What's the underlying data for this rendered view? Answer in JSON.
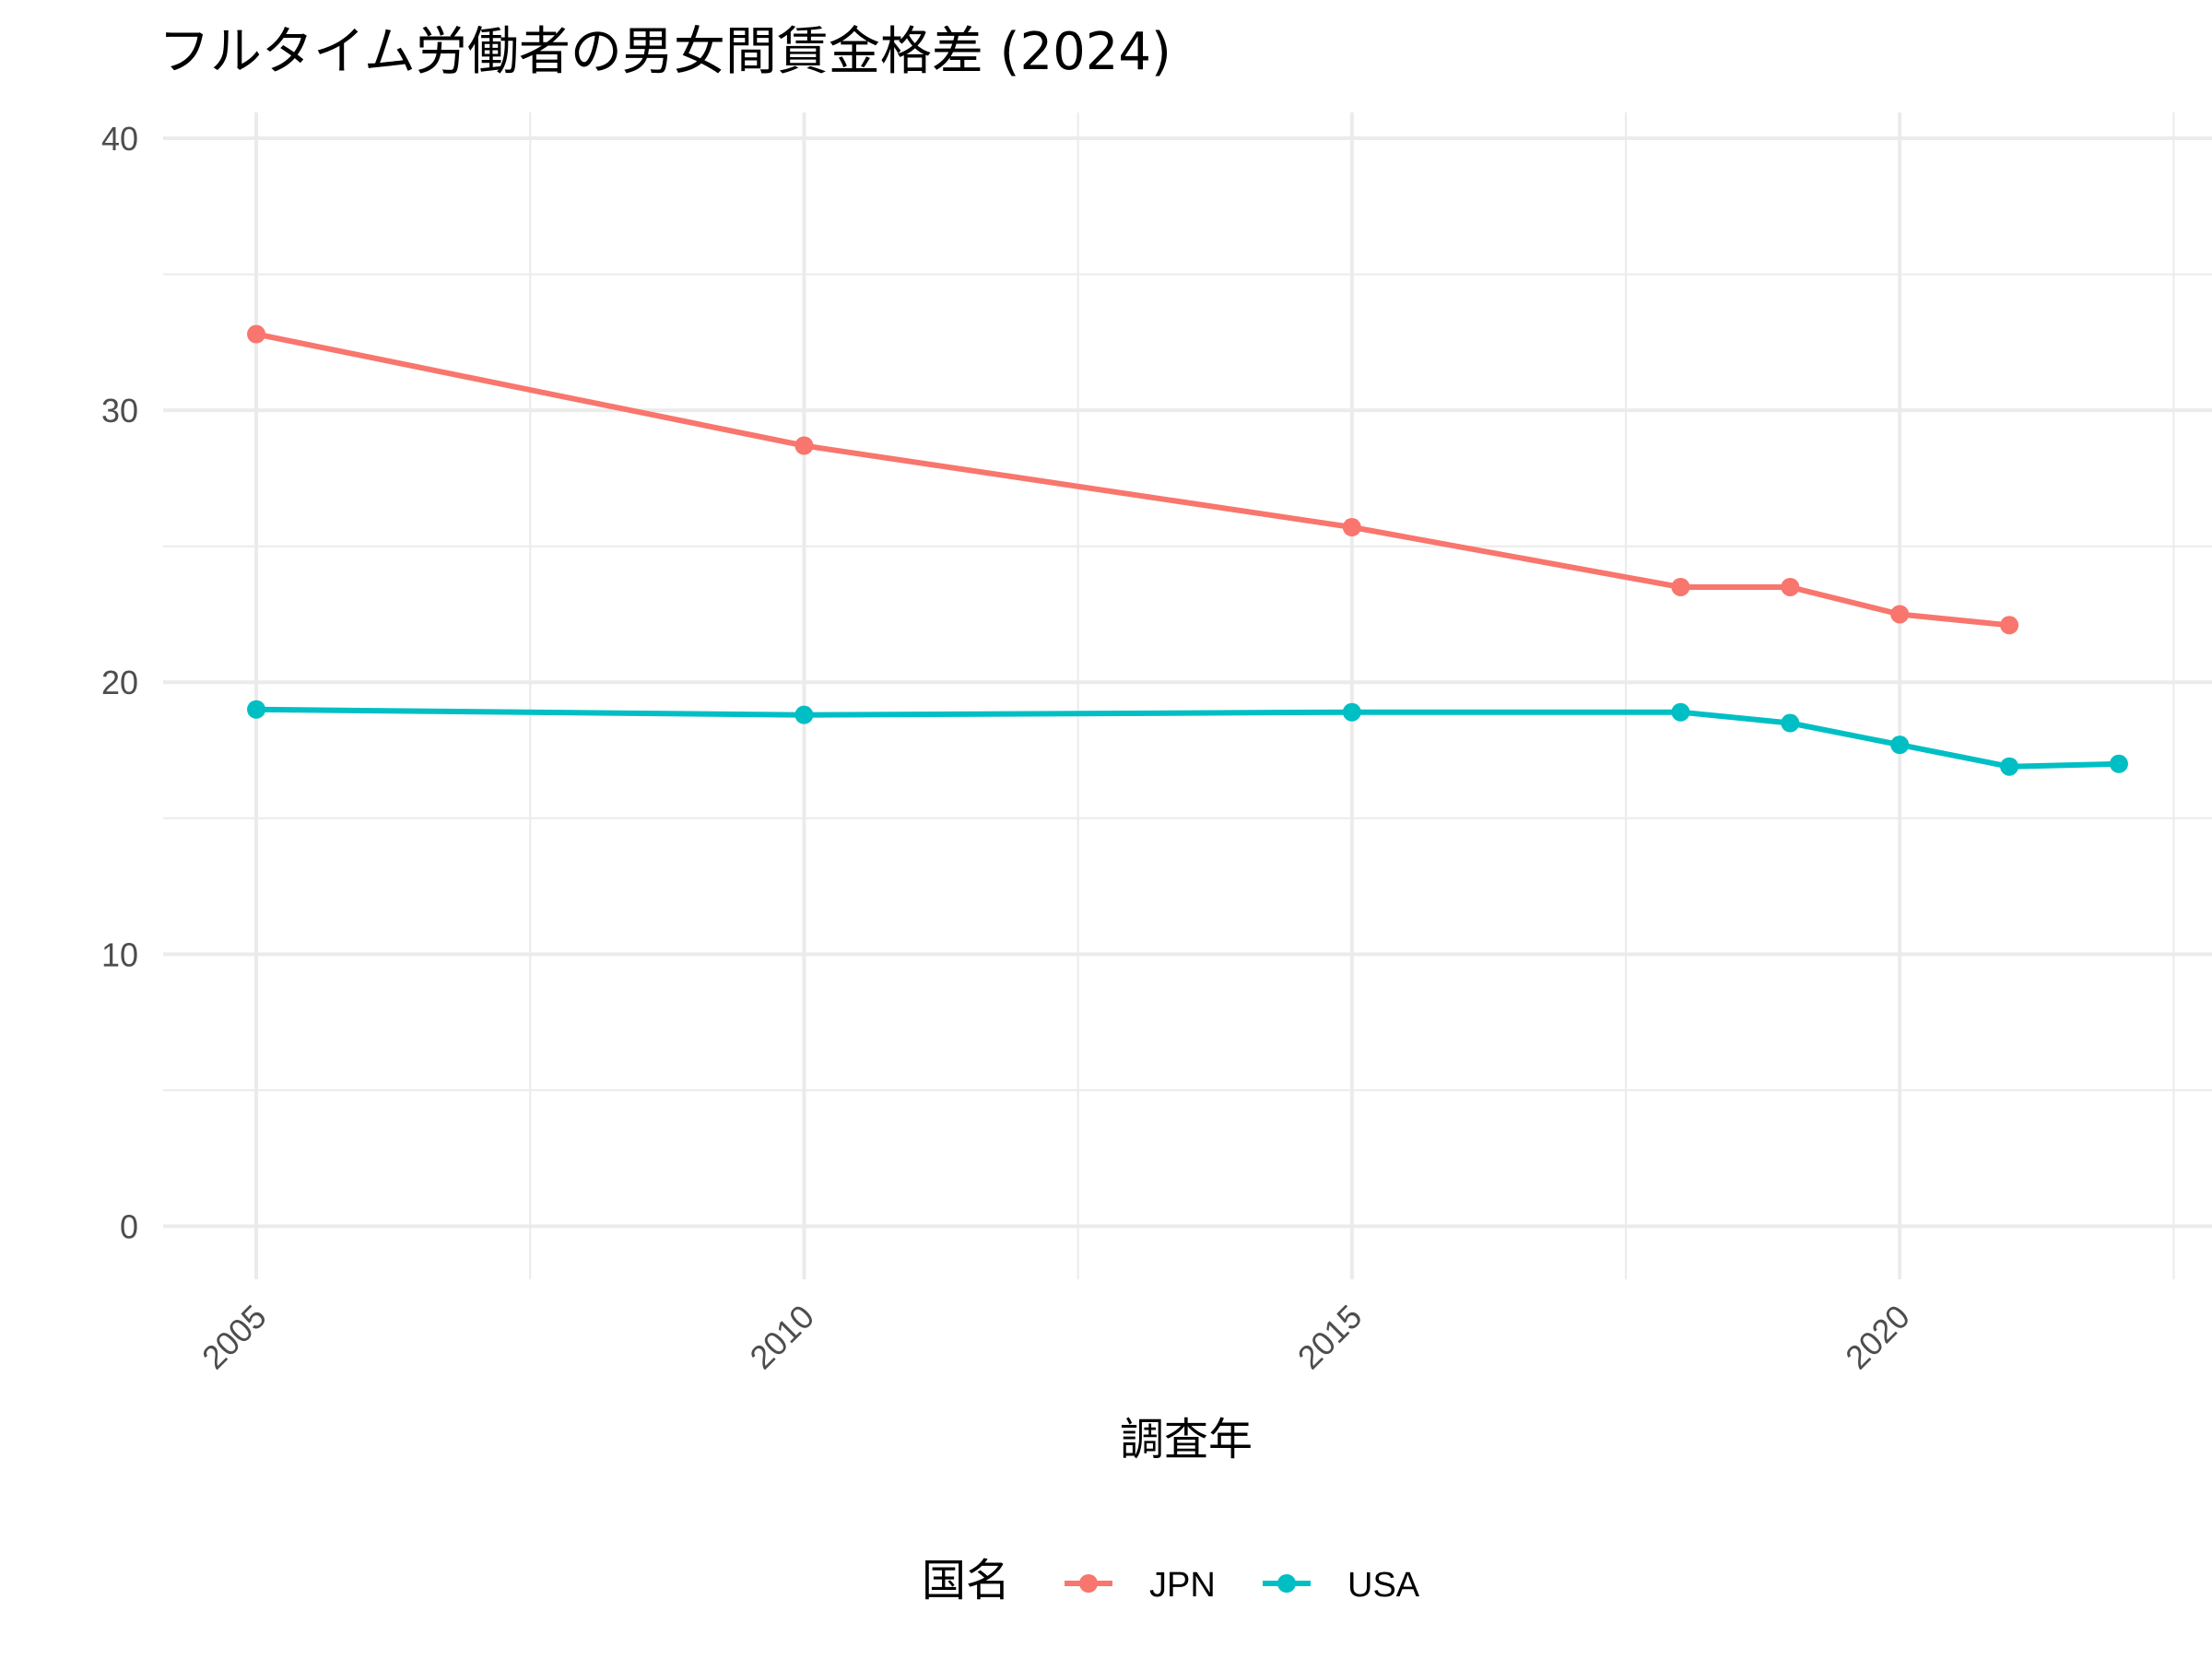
{
  "chart_data": {
    "type": "line",
    "title": "フルタイム労働者の男女間賃金格差 (2024)",
    "xlabel": "調査年",
    "ylabel": "",
    "xlim": [
      2004.15,
      2022.85
    ],
    "ylim": [
      -1.95,
      40.95
    ],
    "xticks": [
      2005,
      2010,
      2015,
      2020
    ],
    "yticks": [
      0,
      10,
      20,
      30,
      40
    ],
    "grid": true,
    "legend": {
      "title": "国名",
      "position": "bottom"
    },
    "series": [
      {
        "name": "JPN",
        "color": "#F8766D",
        "points": [
          {
            "x": 2005,
            "y": 32.8
          },
          {
            "x": 2010,
            "y": 28.7
          },
          {
            "x": 2015,
            "y": 25.7
          },
          {
            "x": 2018,
            "y": 23.5
          },
          {
            "x": 2019,
            "y": 23.5
          },
          {
            "x": 2020,
            "y": 22.5
          },
          {
            "x": 2021,
            "y": 22.1
          }
        ]
      },
      {
        "name": "USA",
        "color": "#00BFC4",
        "points": [
          {
            "x": 2005,
            "y": 19.0
          },
          {
            "x": 2010,
            "y": 18.8
          },
          {
            "x": 2015,
            "y": 18.9
          },
          {
            "x": 2018,
            "y": 18.9
          },
          {
            "x": 2019,
            "y": 18.5
          },
          {
            "x": 2020,
            "y": 17.7
          },
          {
            "x": 2021,
            "y": 16.9
          },
          {
            "x": 2022,
            "y": 17.0
          }
        ]
      }
    ]
  }
}
